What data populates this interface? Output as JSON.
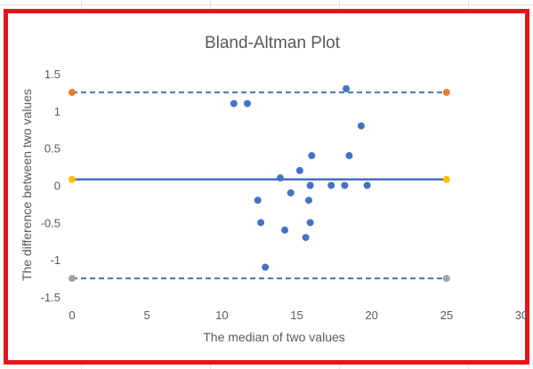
{
  "chart_data": {
    "type": "scatter",
    "title": "Bland-Altman Plot",
    "xlabel": "The median of two values",
    "ylabel": "The difference between two values",
    "xlim": [
      0,
      30
    ],
    "ylim": [
      -1.5,
      1.5
    ],
    "x_ticks": [
      "0",
      "5",
      "10",
      "15",
      "20",
      "25",
      "30"
    ],
    "y_ticks": [
      "1.5",
      "1",
      "0.5",
      "0",
      "-0.5",
      "-1",
      "-1.5"
    ],
    "x_tick_values": [
      0,
      5,
      10,
      15,
      20,
      25,
      30
    ],
    "y_tick_values": [
      1.5,
      1,
      0.5,
      0,
      -0.5,
      -1,
      -1.5
    ],
    "grid": false,
    "points": [
      {
        "x": 10.8,
        "y": 1.1
      },
      {
        "x": 11.7,
        "y": 1.1
      },
      {
        "x": 18.3,
        "y": 1.3
      },
      {
        "x": 19.3,
        "y": 0.8
      },
      {
        "x": 18.5,
        "y": 0.4
      },
      {
        "x": 16.0,
        "y": 0.4
      },
      {
        "x": 15.2,
        "y": 0.2
      },
      {
        "x": 13.9,
        "y": 0.1
      },
      {
        "x": 15.9,
        "y": 0.0
      },
      {
        "x": 17.3,
        "y": 0.0
      },
      {
        "x": 18.2,
        "y": 0.0
      },
      {
        "x": 19.7,
        "y": 0.0
      },
      {
        "x": 14.6,
        "y": -0.1
      },
      {
        "x": 12.4,
        "y": -0.2
      },
      {
        "x": 15.8,
        "y": -0.2
      },
      {
        "x": 12.6,
        "y": -0.5
      },
      {
        "x": 15.9,
        "y": -0.5
      },
      {
        "x": 14.2,
        "y": -0.6
      },
      {
        "x": 15.6,
        "y": -0.7
      },
      {
        "x": 12.9,
        "y": -1.1
      }
    ],
    "reference_lines": [
      {
        "name": "upper",
        "y": 1.25,
        "style": "dashed",
        "color": "#4472c4",
        "marker_color": "#ed7d31",
        "x_range": [
          0,
          25
        ]
      },
      {
        "name": "mean",
        "y": 0.08,
        "style": "solid",
        "color": "#4472c4",
        "marker_color": "#ffc000",
        "x_range": [
          0,
          25
        ]
      },
      {
        "name": "lower",
        "y": -1.25,
        "style": "dashed",
        "color": "#4472c4",
        "marker_color": "#a5a5a5",
        "x_range": [
          0,
          25
        ]
      }
    ],
    "colors": {
      "points": "#4472c4",
      "frame": "#e8141c",
      "text": "#595959"
    }
  }
}
